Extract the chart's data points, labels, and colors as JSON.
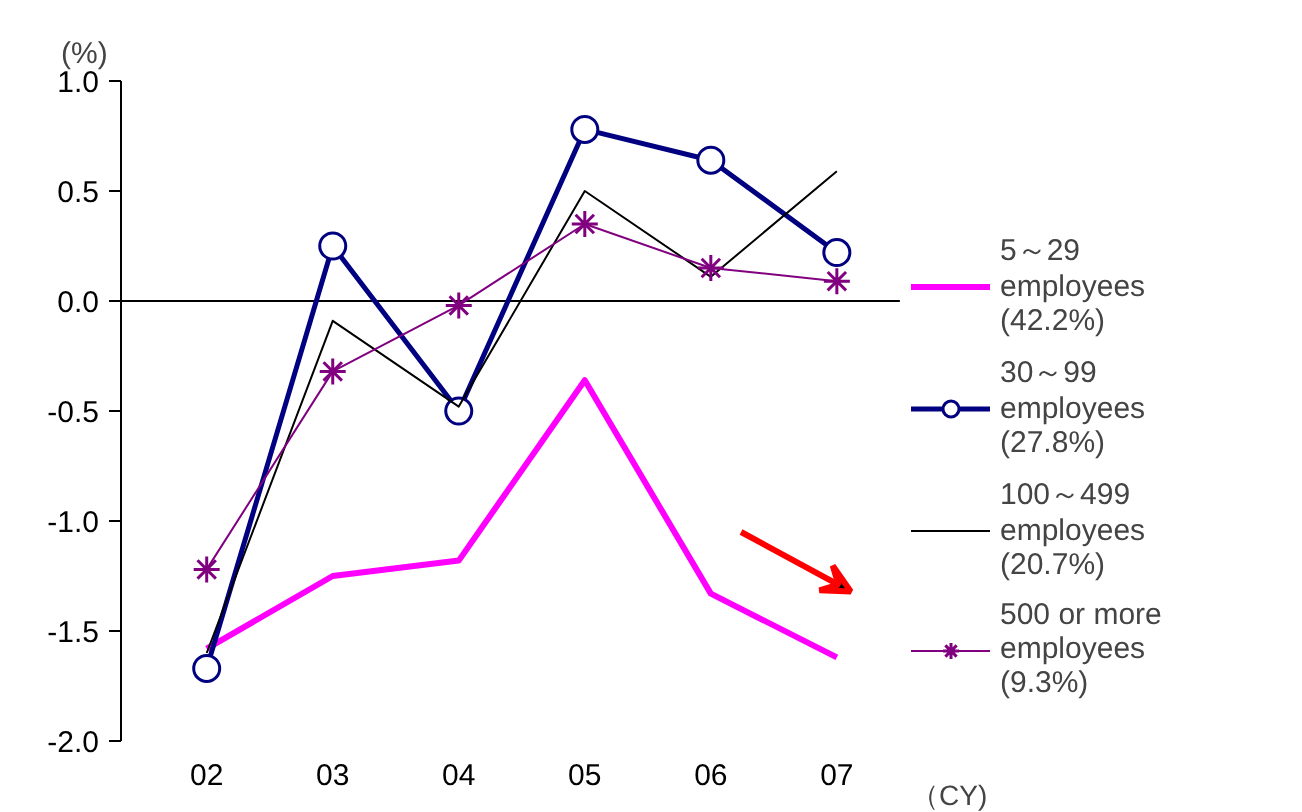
{
  "chart_data": {
    "type": "line",
    "ylabel": "(%)",
    "xlabel": "（CY)",
    "categories": [
      "02",
      "03",
      "04",
      "05",
      "06",
      "07"
    ],
    "ylim": [
      -2.0,
      1.0
    ],
    "yticks": [
      {
        "value": -2,
        "label": "-2.0"
      },
      {
        "value": -1.5,
        "label": "-1.5"
      },
      {
        "value": -1,
        "label": "-1.0"
      },
      {
        "value": -0.5,
        "label": "-0.5"
      },
      {
        "value": 0,
        "label": "0.0"
      },
      {
        "value": 0.5,
        "label": "0.5"
      },
      {
        "value": 1,
        "label": "1.0"
      }
    ],
    "grid": false,
    "legend": "right",
    "ref_lines": [
      {
        "axis": "y",
        "value": 0
      }
    ],
    "series": [
      {
        "name": "5～29\nemployees\n(42.2%)",
        "color": "#ff00ff",
        "marker": "none",
        "values": [
          -1.58,
          -1.25,
          -1.18,
          -0.36,
          -1.33,
          -1.62
        ]
      },
      {
        "name": "30～99\nemployees\n(27.8%)",
        "color": "#000080",
        "marker": "circle",
        "values": [
          -1.67,
          0.25,
          -0.5,
          0.78,
          0.64,
          0.22
        ]
      },
      {
        "name": "100～499\nemployees\n(20.7%)",
        "color": "#000000",
        "marker": "none",
        "values": [
          -1.6,
          -0.09,
          -0.48,
          0.5,
          0.11,
          0.59
        ]
      },
      {
        "name": "500 or more\nemployees\n(9.3%)",
        "color": "#800080",
        "marker": "cross",
        "values": [
          -1.22,
          -0.32,
          -0.02,
          0.35,
          0.15,
          0.09
        ]
      }
    ]
  }
}
